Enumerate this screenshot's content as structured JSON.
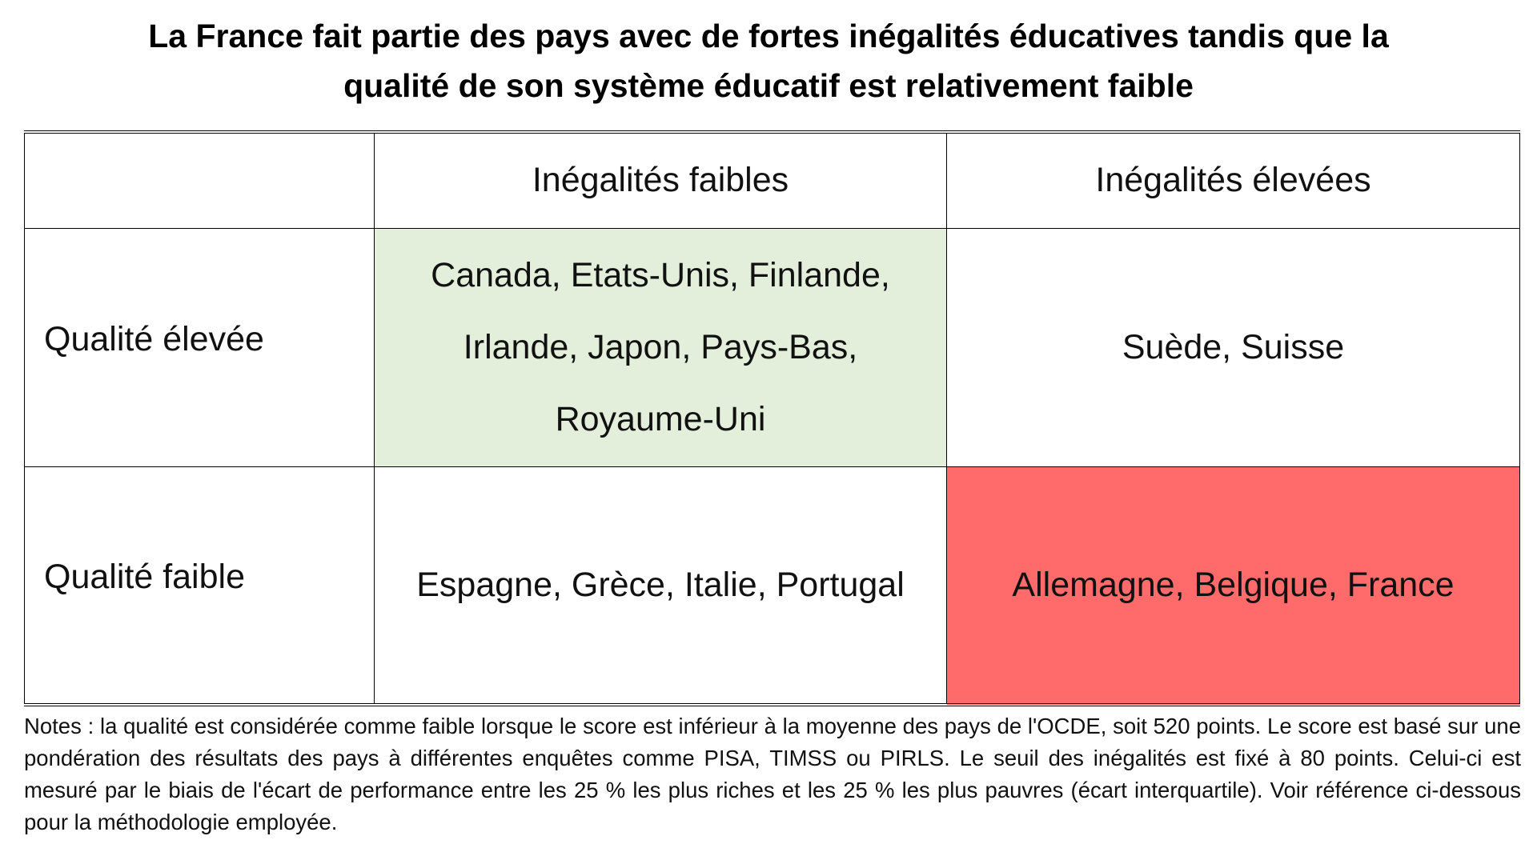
{
  "title": {
    "line1": "La France fait partie des pays avec de fortes inégalités éducatives tandis que la",
    "line2": "qualité de son système éducatif est relativement faible"
  },
  "table": {
    "corner": "",
    "columns": [
      "Inégalités faibles",
      "Inégalités élevées"
    ],
    "rows": [
      {
        "label": "Qualité élevée",
        "low_inequality": [
          "Canada, Etats-Unis, Finlande,",
          "Irlande, Japon, Pays-Bas,",
          "Royaume-Uni"
        ],
        "high_inequality": [
          "Suède, Suisse"
        ]
      },
      {
        "label": "Qualité faible",
        "low_inequality": [
          "Espagne, Grèce, Italie, Portugal"
        ],
        "high_inequality": [
          "Allemagne, Belgique, France"
        ]
      }
    ]
  },
  "notes": "Notes : la qualité est considérée comme faible lorsque le score est inférieur à la moyenne des pays de l'OCDE, soit 520 points. Le score est basé sur une pondération des résultats des pays à différentes enquêtes comme PISA, TIMSS ou PIRLS. Le seuil des inégalités est fixé à 80 points. Celui-ci est mesuré par le biais de l'écart de performance entre les 25 % les plus riches et les 25 % les plus pauvres (écart interquartile). Voir référence ci-dessous pour la méthodologie employée.",
  "colors": {
    "highlight_good": "#e3efda",
    "highlight_bad": "#ff6b6b"
  }
}
